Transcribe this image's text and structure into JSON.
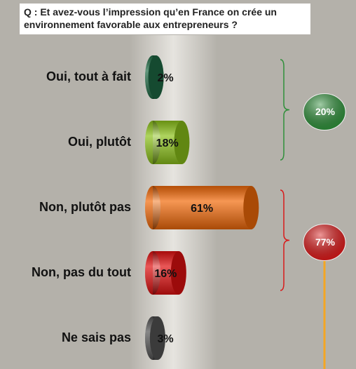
{
  "chart_data": {
    "type": "cylinder-bar",
    "title": "Q : Et avez-vous l’impression qu’en France on crée un environnement favorable aux entrepreneurs ?",
    "categories": [
      "Oui, tout à fait",
      "Oui, plutôt",
      "Non, plutôt pas",
      "Non, pas du tout",
      "Ne sais pas"
    ],
    "values": [
      2,
      18,
      61,
      16,
      3
    ],
    "value_labels": [
      "2%",
      "18%",
      "61%",
      "16%",
      "3%"
    ],
    "colors": [
      "#1f6b45",
      "#8cc21a",
      "#f26a0a",
      "#e01010",
      "#555555"
    ],
    "groups": [
      {
        "from": 0,
        "to": 1,
        "value": 20,
        "label": "20%",
        "color": "#2f8f3a"
      },
      {
        "from": 2,
        "to": 3,
        "value": 77,
        "label": "77%",
        "color": "#d91a1a"
      }
    ]
  }
}
